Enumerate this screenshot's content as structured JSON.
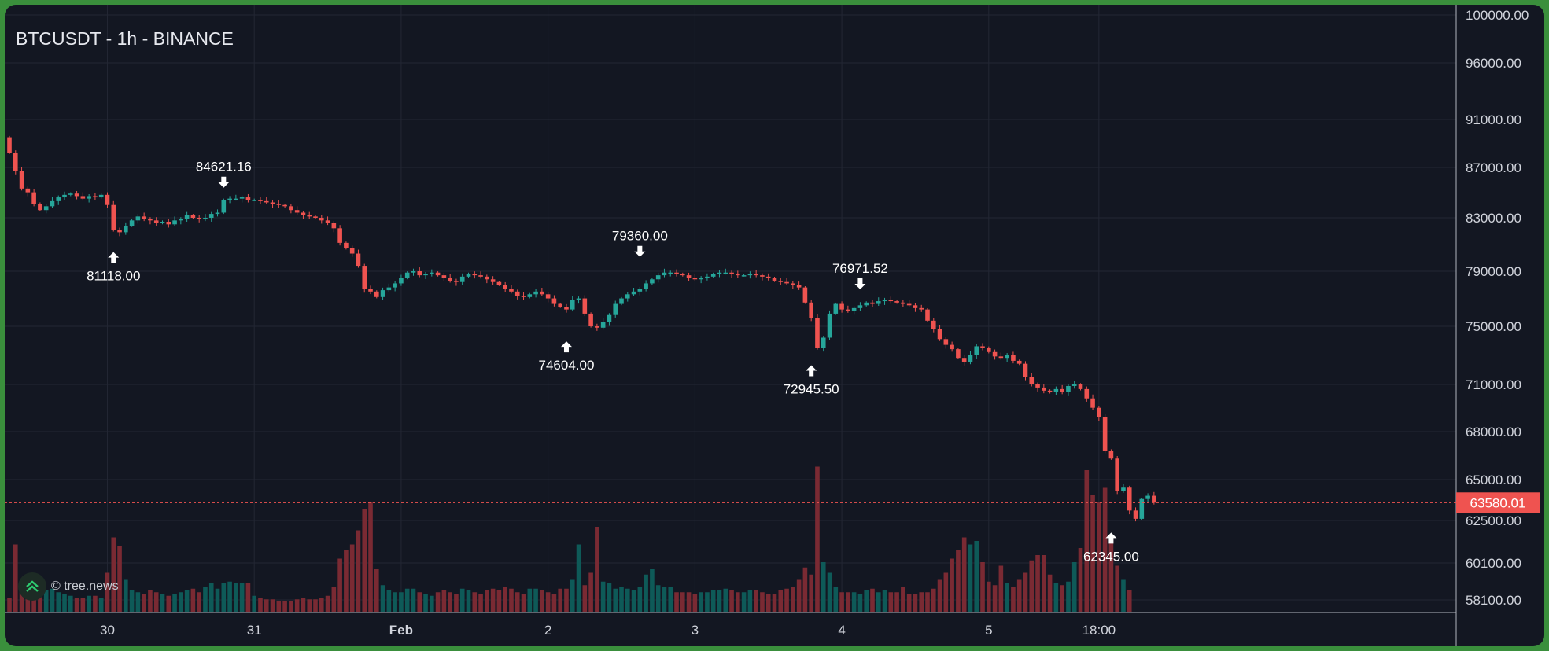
{
  "chart_title": "BTCUSDT - 1h - BINANCE",
  "watermark": "© tree.news",
  "colors": {
    "background": "#131722",
    "frame": "#3a8f3c",
    "grid": "#232734",
    "axis_text": "#d1d4dc",
    "up": "#26a69a",
    "down": "#ef5350",
    "up_volume": "#0e5a58",
    "down_volume": "#7a2a33",
    "price_line": "#ef5350"
  },
  "chart_data": {
    "type": "candlestick",
    "title": "BTCUSDT - 1h - BINANCE",
    "price_scale": "log",
    "grid": true,
    "y_ticks": [
      100000.0,
      96000.0,
      91000.0,
      87000.0,
      83000.0,
      79000.0,
      75000.0,
      71000.0,
      68000.0,
      65000.0,
      62500.0,
      60100.0,
      58100.0
    ],
    "y_tick_labels": [
      "100000.00",
      "96000.00",
      "91000.00",
      "87000.00",
      "83000.00",
      "79000.00",
      "75000.00",
      "71000.00",
      "68000.00",
      "65000.00",
      "62500.00",
      "60100.00",
      "58100.00"
    ],
    "x_ticks": [
      {
        "label": "30",
        "hour": 16,
        "bold": false
      },
      {
        "label": "31",
        "hour": 40,
        "bold": false
      },
      {
        "label": "Feb",
        "hour": 64,
        "bold": true
      },
      {
        "label": "2",
        "hour": 88,
        "bold": false
      },
      {
        "label": "3",
        "hour": 112,
        "bold": false
      },
      {
        "label": "4",
        "hour": 136,
        "bold": false
      },
      {
        "label": "5",
        "hour": 160,
        "bold": false
      },
      {
        "label": "18:00",
        "hour": 178,
        "bold": false
      }
    ],
    "x_unit": "hours since Jan 29 05:00",
    "last_price": {
      "value": 63580.01,
      "label": "63580.01"
    },
    "annotations": [
      {
        "kind": "low",
        "hour": 17,
        "price": 81118.0,
        "label": "81118.00"
      },
      {
        "kind": "high",
        "hour": 35,
        "price": 84621.16,
        "label": "84621.16"
      },
      {
        "kind": "low",
        "hour": 91,
        "price": 74604.0,
        "label": "74604.00"
      },
      {
        "kind": "high",
        "hour": 103,
        "price": 79360.0,
        "label": "79360.00"
      },
      {
        "kind": "low",
        "hour": 131,
        "price": 72945.5,
        "label": "72945.50"
      },
      {
        "kind": "high",
        "hour": 139,
        "price": 76971.52,
        "label": "76971.52"
      },
      {
        "kind": "low",
        "hour": 180,
        "price": 62345.0,
        "label": "62345.00"
      }
    ],
    "closes": [
      88200,
      86700,
      85300,
      85000,
      84100,
      83600,
      83900,
      84300,
      84600,
      84800,
      84900,
      84700,
      84500,
      84700,
      84600,
      84800,
      84000,
      82100,
      81900,
      82400,
      82800,
      83100,
      82900,
      82800,
      82600,
      82700,
      82500,
      82800,
      82900,
      83200,
      83000,
      82900,
      83000,
      83300,
      83400,
      84400,
      84500,
      84500,
      84600,
      84400,
      84400,
      84300,
      84200,
      84100,
      84000,
      83900,
      83600,
      83400,
      83200,
      83100,
      83000,
      82800,
      82600,
      82200,
      81100,
      80700,
      80300,
      79400,
      77700,
      77500,
      77100,
      77600,
      77800,
      78100,
      78500,
      78900,
      79000,
      78700,
      78800,
      78900,
      78700,
      78500,
      78300,
      78200,
      78600,
      78800,
      78700,
      78600,
      78400,
      78200,
      78000,
      77700,
      77500,
      77200,
      77100,
      77300,
      77500,
      77300,
      77000,
      76600,
      76400,
      76200,
      76900,
      77000,
      75900,
      75000,
      74900,
      75300,
      75800,
      76600,
      77000,
      77300,
      77500,
      77700,
      78100,
      78400,
      78700,
      78900,
      78900,
      78800,
      78700,
      78500,
      78400,
      78500,
      78600,
      78800,
      78900,
      78900,
      78800,
      78700,
      78700,
      78800,
      78700,
      78600,
      78500,
      78300,
      78200,
      78100,
      78000,
      77800,
      76700,
      75600,
      73500,
      74200,
      75900,
      76600,
      76200,
      76100,
      76300,
      76500,
      76700,
      76600,
      76800,
      76900,
      76800,
      76700,
      76600,
      76500,
      76300,
      76200,
      75400,
      74800,
      74100,
      73700,
      73400,
      72800,
      72500,
      73000,
      73600,
      73500,
      73200,
      72900,
      72800,
      73000,
      72600,
      72400,
      71500,
      71000,
      70800,
      70600,
      70500,
      70700,
      70500,
      70900,
      71000,
      70700,
      70100,
      69500,
      68900,
      66800,
      66300,
      64300,
      64500,
      63100,
      62600,
      63800,
      64000,
      63580.01
    ],
    "volumes": [
      8,
      38,
      12,
      10,
      9,
      11,
      12,
      13,
      11,
      10,
      9,
      8,
      8,
      9,
      9,
      8,
      22,
      42,
      37,
      18,
      12,
      11,
      10,
      12,
      11,
      10,
      9,
      10,
      11,
      12,
      13,
      11,
      14,
      16,
      13,
      16,
      17,
      16,
      16,
      16,
      9,
      8,
      7,
      7,
      6,
      6,
      6,
      7,
      8,
      7,
      7,
      8,
      9,
      14,
      30,
      35,
      38,
      46,
      58,
      62,
      24,
      15,
      12,
      11,
      11,
      13,
      13,
      11,
      10,
      9,
      11,
      12,
      11,
      10,
      13,
      12,
      11,
      10,
      12,
      13,
      12,
      14,
      13,
      11,
      10,
      13,
      13,
      12,
      11,
      10,
      13,
      13,
      18,
      38,
      15,
      22,
      48,
      17,
      16,
      13,
      14,
      13,
      12,
      14,
      21,
      24,
      15,
      14,
      14,
      11,
      11,
      11,
      10,
      11,
      11,
      12,
      12,
      13,
      12,
      11,
      11,
      12,
      12,
      11,
      10,
      10,
      12,
      13,
      14,
      18,
      25,
      21,
      82,
      28,
      22,
      14,
      11,
      11,
      11,
      10,
      12,
      13,
      11,
      12,
      11,
      11,
      14,
      10,
      10,
      11,
      11,
      13,
      18,
      22,
      30,
      35,
      42,
      38,
      40,
      28,
      17,
      15,
      26,
      16,
      14,
      18,
      22,
      29,
      32,
      32,
      21,
      16,
      15,
      17,
      28,
      36,
      80,
      66,
      62,
      70,
      42,
      26,
      18,
      12
    ]
  }
}
